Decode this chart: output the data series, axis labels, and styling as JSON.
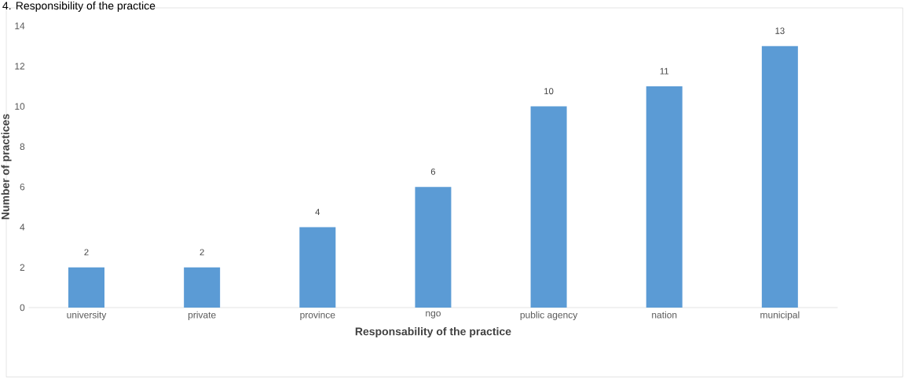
{
  "chart_data": {
    "type": "bar",
    "title": "4. Responsibility of the practice",
    "xlabel": "Responsability of the practice",
    "ylabel": "Number of practices",
    "categories": [
      "university",
      "private",
      "province",
      "ngo",
      "public agency",
      "nation",
      "municipal"
    ],
    "values": [
      2,
      2,
      4,
      6,
      10,
      11,
      13
    ],
    "color": "#5b9bd5",
    "ylim": [
      0,
      14
    ],
    "yticks": [
      0,
      2,
      4,
      6,
      8,
      10,
      12,
      14
    ],
    "grid": false,
    "data_labels": true
  }
}
